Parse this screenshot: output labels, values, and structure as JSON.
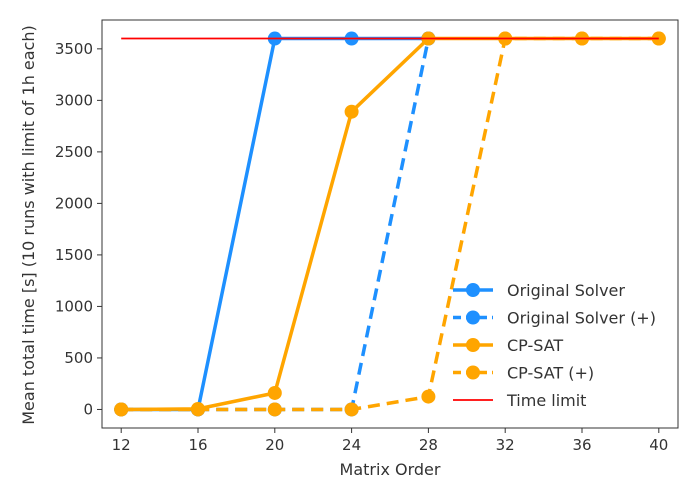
{
  "chart_data": {
    "type": "line",
    "title": "",
    "xlabel": "Matrix Order",
    "ylabel": "Mean total time [s] (10 runs with limit of 1h each)",
    "x": [
      12,
      16,
      20,
      24,
      28,
      32,
      36,
      40
    ],
    "xlim": [
      11,
      41
    ],
    "ylim": [
      -180,
      3780
    ],
    "xticks": [
      12,
      16,
      20,
      24,
      28,
      32,
      36,
      40
    ],
    "yticks": [
      0,
      500,
      1000,
      1500,
      2000,
      2500,
      3000,
      3500
    ],
    "grid": false,
    "legend_position": "lower-right",
    "series": [
      {
        "name": "Original Solver",
        "color": "#1e90ff",
        "dash": false,
        "marker": true,
        "x": [
          12,
          16,
          20,
          24,
          28
        ],
        "values": [
          0,
          0,
          3600,
          3600,
          3600
        ]
      },
      {
        "name": "Original Solver (+)",
        "color": "#1e90ff",
        "dash": true,
        "marker": true,
        "x": [
          12,
          16,
          20,
          24,
          28
        ],
        "values": [
          0,
          0,
          0,
          0,
          3600
        ]
      },
      {
        "name": "CP-SAT",
        "color": "#ffa500",
        "dash": false,
        "marker": true,
        "x": [
          12,
          16,
          20,
          24,
          28,
          32,
          36,
          40
        ],
        "values": [
          0,
          5,
          160,
          2890,
          3600,
          3600,
          3600,
          3600
        ]
      },
      {
        "name": "CP-SAT (+)",
        "color": "#ffa500",
        "dash": true,
        "marker": true,
        "x": [
          12,
          16,
          20,
          24,
          28,
          32,
          36,
          40
        ],
        "values": [
          0,
          0,
          0,
          0,
          125,
          3600,
          3600,
          3600
        ]
      },
      {
        "name": "Time limit",
        "color": "#ff0000",
        "dash": false,
        "marker": false,
        "x": [
          12,
          40
        ],
        "values": [
          3600,
          3600
        ]
      }
    ]
  }
}
